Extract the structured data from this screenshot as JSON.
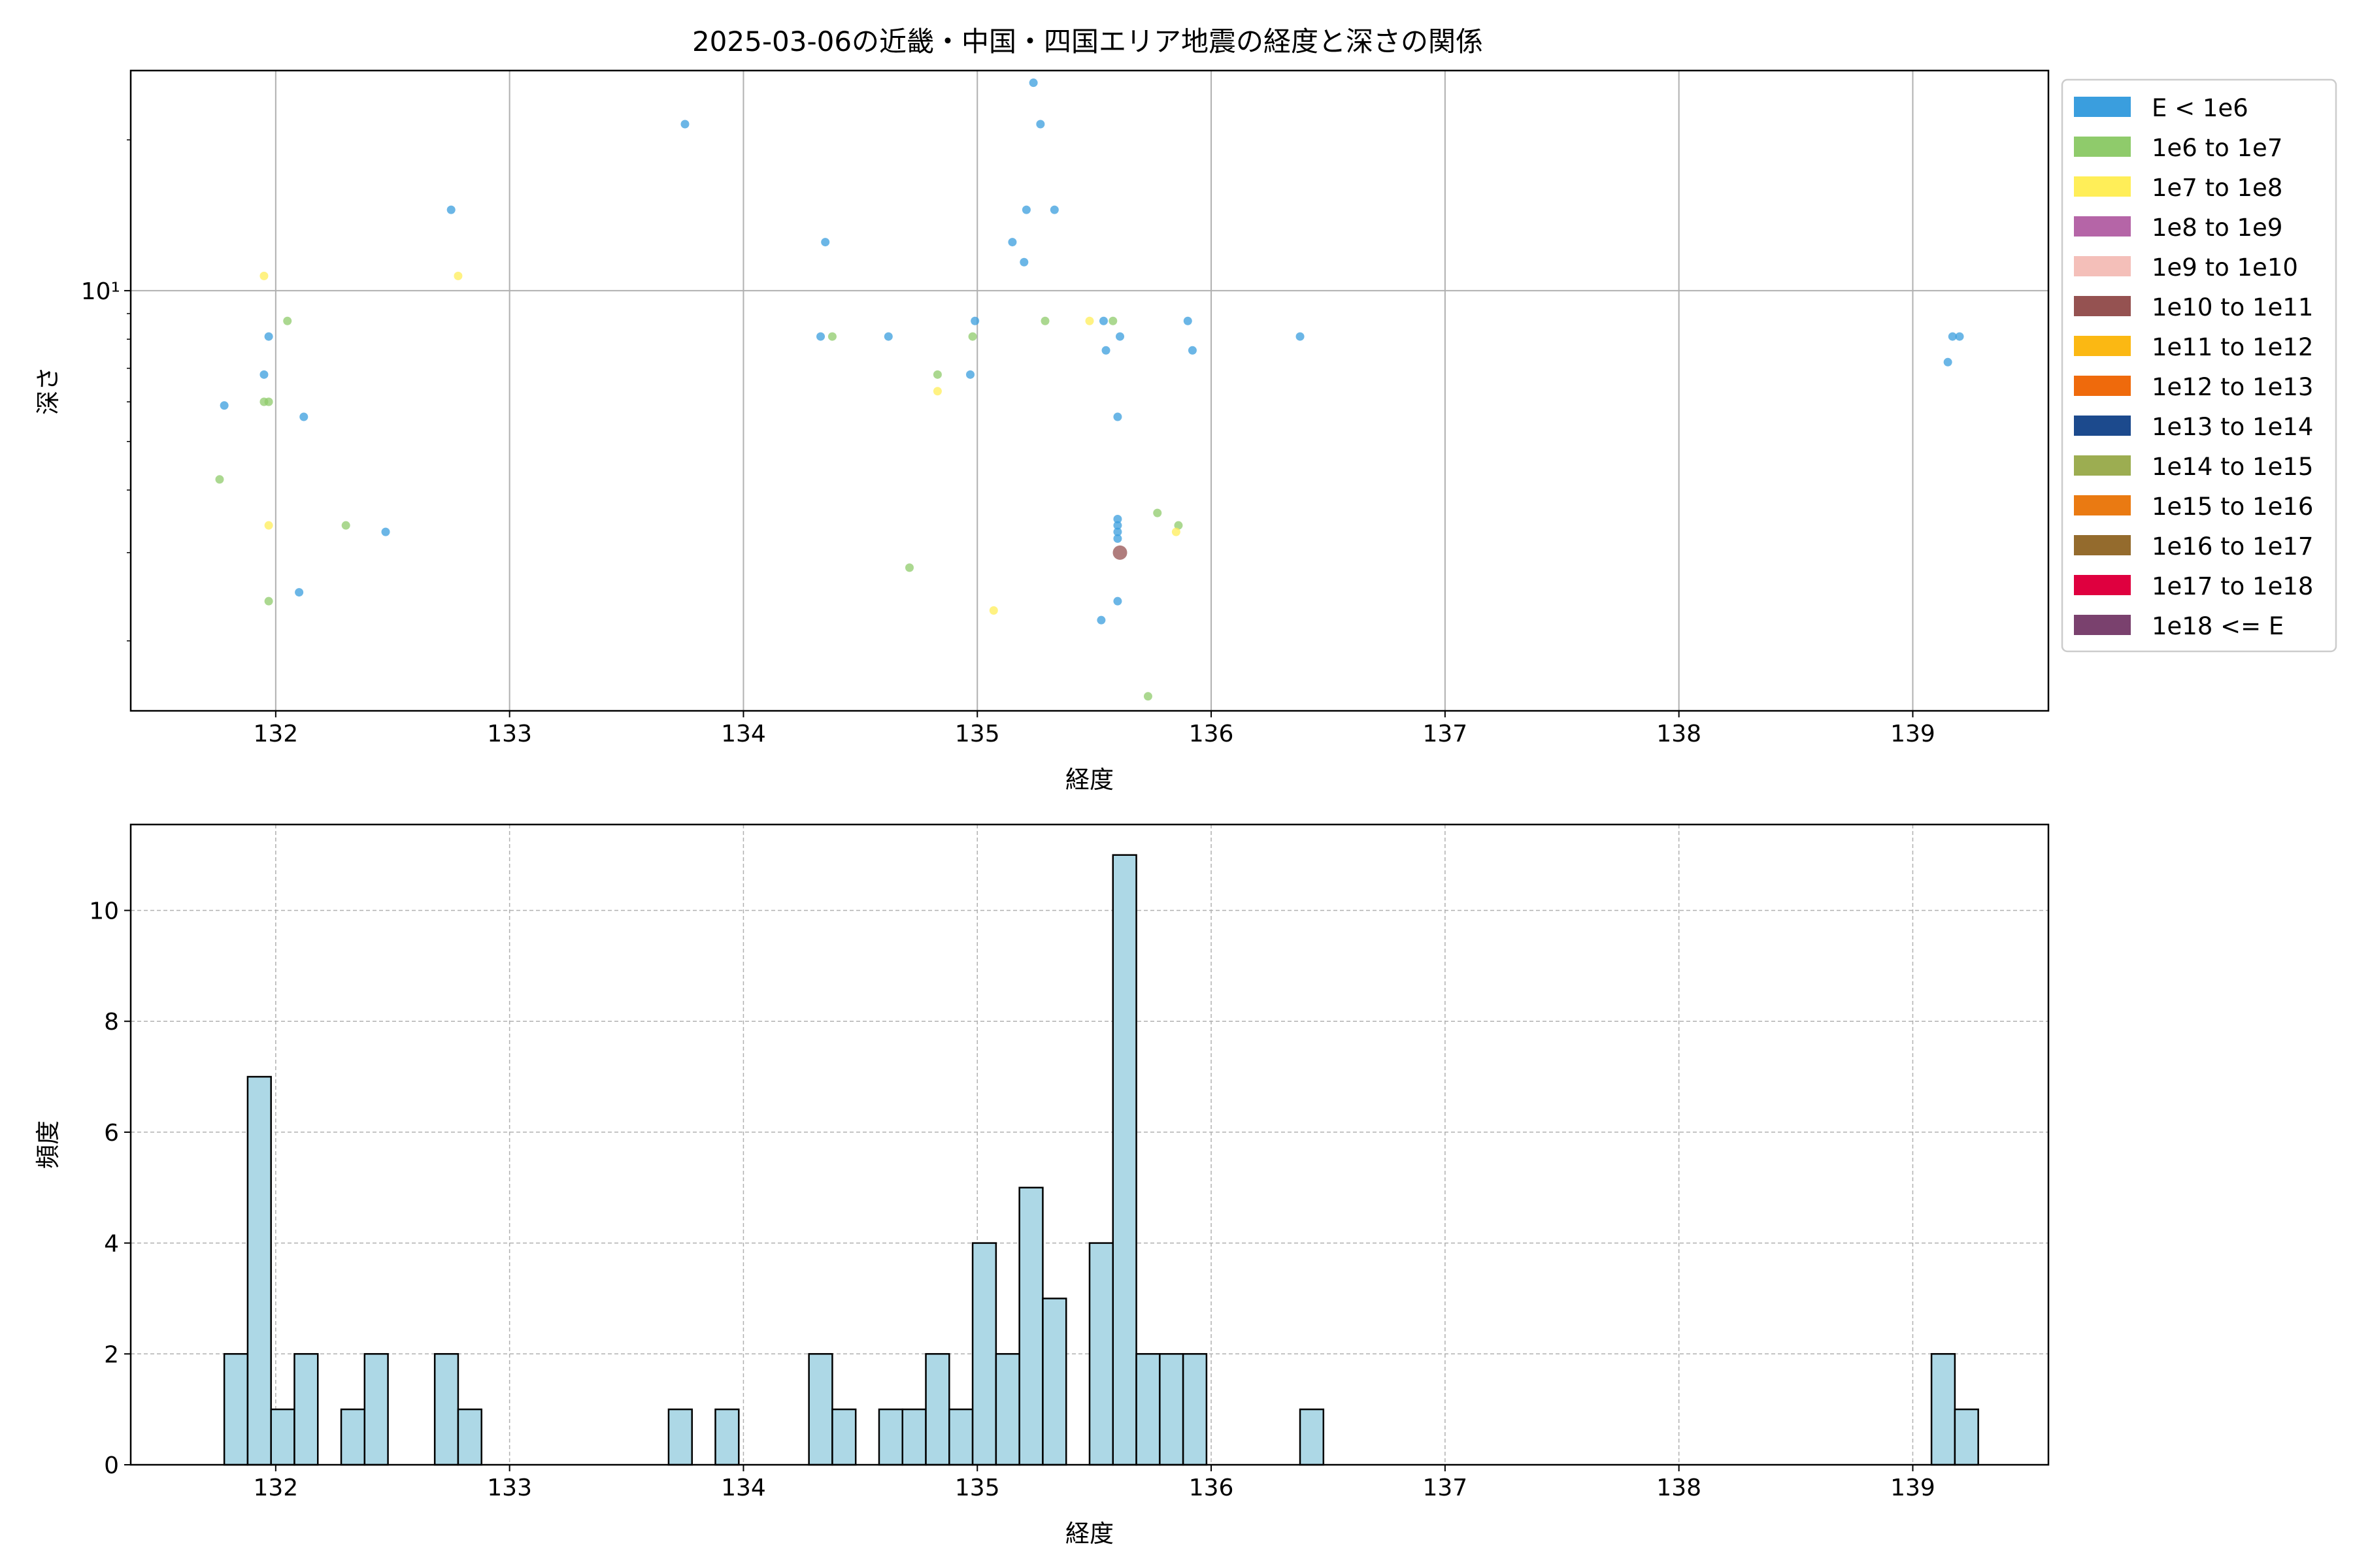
{
  "title": "2025-03-06の近畿・中国・四国エリア地震の経度と深さの関係",
  "scatter": {
    "xlabel": "経度",
    "ylabel": "深さ",
    "x_ticks": [
      "132",
      "133",
      "134",
      "135",
      "136",
      "137",
      "138",
      "139"
    ],
    "y_ticks": [
      "10¹"
    ],
    "legend": [
      "E < 1e6",
      "1e6 to 1e7",
      "1e7 to 1e8",
      "1e8 to 1e9",
      "1e9 to 1e10",
      "1e10 to 1e11",
      "1e11 to 1e12",
      "1e12 to 1e13",
      "1e13 to 1e14",
      "1e14 to 1e15",
      "1e15 to 1e16",
      "1e16 to 1e17",
      "1e17 to 1e18",
      "1e18 <= E"
    ]
  },
  "histogram": {
    "xlabel": "経度",
    "ylabel": "頻度",
    "x_ticks": [
      "132",
      "133",
      "134",
      "135",
      "136",
      "137",
      "138",
      "139"
    ],
    "y_ticks": [
      "0",
      "2",
      "4",
      "6",
      "8",
      "10"
    ]
  },
  "chart_data": [
    {
      "type": "scatter",
      "title": "2025-03-06の近畿・中国・四国エリア地震の経度と深さの関係",
      "xlabel": "経度",
      "ylabel": "深さ",
      "xlim": [
        131.38,
        139.58
      ],
      "ylim": [
        1.45,
        27.5
      ],
      "yscale": "log",
      "grid": true,
      "legend_position": "outside-right",
      "categories": [
        "E < 1e6",
        "1e6 to 1e7",
        "1e7 to 1e8",
        "1e8 to 1e9",
        "1e9 to 1e10",
        "1e10 to 1e11",
        "1e11 to 1e12",
        "1e12 to 1e13",
        "1e13 to 1e14",
        "1e14 to 1e15",
        "1e15 to 1e16",
        "1e16 to 1e17",
        "1e17 to 1e18",
        "1e18 <= E"
      ],
      "colors": [
        "#3a9ede",
        "#8fcb6b",
        "#ffee58",
        "#b565a7",
        "#f4bfb9",
        "#955251",
        "#fbb813",
        "#ef6a0c",
        "#1c4a8d",
        "#9cad51",
        "#ea7a12",
        "#946b2d",
        "#df003f",
        "#7a416e"
      ],
      "series": [
        {
          "name": "E < 1e6",
          "points": [
            [
              131.78,
              5.9
            ],
            [
              131.95,
              6.8
            ],
            [
              131.97,
              8.1
            ],
            [
              132.12,
              5.6
            ],
            [
              132.1,
              2.5
            ],
            [
              132.47,
              3.3
            ],
            [
              132.75,
              14.5
            ],
            [
              133.75,
              21.5
            ],
            [
              134.33,
              8.1
            ],
            [
              134.35,
              12.5
            ],
            [
              134.62,
              8.1
            ],
            [
              134.97,
              6.8
            ],
            [
              134.99,
              8.7
            ],
            [
              135.15,
              12.5
            ],
            [
              135.2,
              11.4
            ],
            [
              135.21,
              14.5
            ],
            [
              135.24,
              26
            ],
            [
              135.27,
              21.5
            ],
            [
              135.33,
              14.5
            ],
            [
              135.53,
              2.2
            ],
            [
              135.54,
              8.7
            ],
            [
              135.55,
              7.6
            ],
            [
              135.6,
              3.5
            ],
            [
              135.6,
              3.4
            ],
            [
              135.6,
              3.3
            ],
            [
              135.6,
              3.2
            ],
            [
              135.6,
              2.4
            ],
            [
              135.6,
              5.6
            ],
            [
              135.61,
              8.1
            ],
            [
              135.9,
              8.7
            ],
            [
              135.92,
              7.6
            ],
            [
              136.38,
              8.1
            ],
            [
              139.15,
              7.2
            ],
            [
              139.17,
              8.1
            ],
            [
              139.2,
              8.1
            ]
          ]
        },
        {
          "name": "1e6 to 1e7",
          "points": [
            [
              131.76,
              4.2
            ],
            [
              131.95,
              6.0
            ],
            [
              131.97,
              6.0
            ],
            [
              131.97,
              2.4
            ],
            [
              132.05,
              8.7
            ],
            [
              132.3,
              3.4
            ],
            [
              134.38,
              8.1
            ],
            [
              134.71,
              2.8
            ],
            [
              134.83,
              6.8
            ],
            [
              134.98,
              8.1
            ],
            [
              135.29,
              8.7
            ],
            [
              135.58,
              8.7
            ],
            [
              135.73,
              1.55
            ],
            [
              135.77,
              3.6
            ],
            [
              135.86,
              3.4
            ]
          ]
        },
        {
          "name": "1e7 to 1e8",
          "points": [
            [
              131.95,
              10.7
            ],
            [
              131.97,
              3.4
            ],
            [
              132.78,
              10.7
            ],
            [
              134.83,
              6.3
            ],
            [
              135.07,
              2.3
            ],
            [
              135.48,
              8.7
            ],
            [
              135.85,
              3.3
            ]
          ]
        },
        {
          "name": "1e10 to 1e11",
          "points": [
            [
              135.61,
              3.0
            ]
          ]
        }
      ]
    },
    {
      "type": "bar",
      "subtype": "histogram",
      "xlabel": "経度",
      "ylabel": "頻度",
      "xlim": [
        131.38,
        139.58
      ],
      "ylim": [
        0,
        11.55
      ],
      "bin_width": 0.1,
      "grid": true,
      "bin_starts": [
        131.78,
        131.88,
        131.98,
        132.08,
        132.28,
        132.38,
        132.68,
        132.78,
        133.68,
        133.88,
        134.28,
        134.38,
        134.58,
        134.68,
        134.78,
        134.88,
        134.98,
        135.08,
        135.18,
        135.28,
        135.48,
        135.58,
        135.68,
        135.78,
        135.88,
        136.38,
        139.08,
        139.18
      ],
      "values": [
        2,
        7,
        1,
        2,
        1,
        2,
        2,
        1,
        1,
        1,
        2,
        1,
        1,
        1,
        2,
        1,
        4,
        2,
        5,
        3,
        4,
        11,
        2,
        2,
        2,
        1,
        2,
        1
      ]
    }
  ]
}
